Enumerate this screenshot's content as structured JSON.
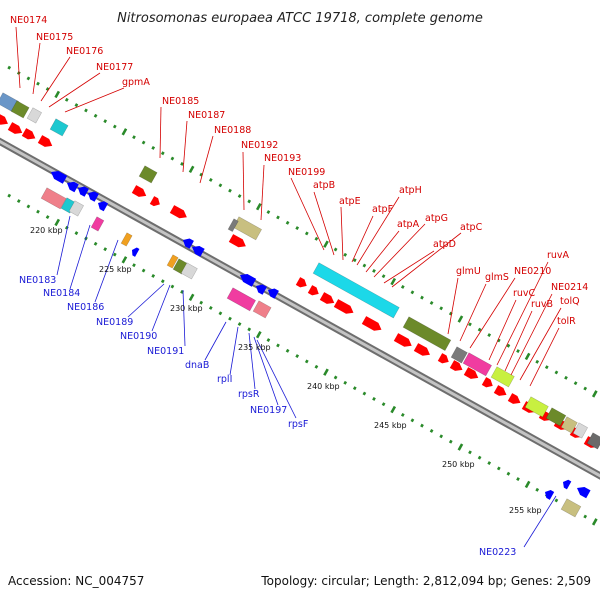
{
  "title": "Nitrosomonas europaea ATCC 19718, complete genome",
  "footer": {
    "accession": "Accession: NC_004757",
    "summary": "Topology: circular; Length: 2,812,094 bp; Genes: 2,509"
  },
  "colors": {
    "forward_label": "#d40000",
    "reverse_label": "#1a1ad6",
    "forward_arrow": "#ff0000",
    "reverse_arrow": "#0000ff",
    "backbone": "#9a9a9a",
    "tick": "#2a8a2a"
  },
  "scale_ticks": [
    "220 kbp",
    "225 kbp",
    "230 kbp",
    "235 kbp",
    "240 kbp",
    "245 kbp",
    "250 kbp",
    "255 kbp"
  ],
  "forward_labels": [
    "NE0174",
    "NE0175",
    "NE0176",
    "NE0177",
    "gpmA",
    "NE0185",
    "NE0187",
    "NE0188",
    "NE0192",
    "NE0193",
    "NE0199",
    "atpB",
    "atpE",
    "atpF",
    "atpH",
    "atpA",
    "atpG",
    "atpD",
    "atpC",
    "glmU",
    "glmS",
    "NE0210",
    "ruvC",
    "ruvA",
    "ruvB",
    "NE0214",
    "tolQ",
    "tolR"
  ],
  "reverse_labels": [
    "NE0183",
    "NE0184",
    "NE0186",
    "NE0189",
    "NE0190",
    "NE0191",
    "dnaB",
    "rplI",
    "rpsR",
    "NE0197",
    "rpsF",
    "NE0223"
  ]
}
